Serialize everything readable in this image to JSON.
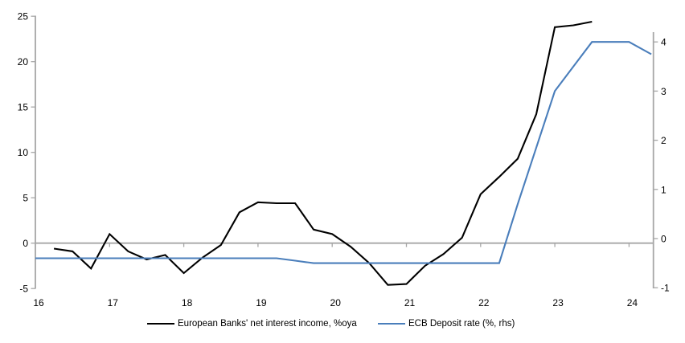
{
  "chart_data": {
    "type": "line",
    "title": "",
    "x_axis": {
      "ticks": [
        16,
        17,
        18,
        19,
        20,
        21,
        22,
        23,
        24
      ],
      "range": [
        16,
        24.33
      ],
      "grid": false
    },
    "left_axis": {
      "ticks": [
        25,
        20,
        15,
        10,
        5,
        0,
        -5
      ],
      "range": [
        -5,
        25
      ]
    },
    "right_axis": {
      "ticks": [
        4,
        3,
        2,
        1,
        0,
        -1
      ],
      "range": [
        -1,
        4
      ]
    },
    "style": {
      "axis_color": "#a6a6a6",
      "background": "#ffffff",
      "zero_line": true,
      "legend_position": "bottom"
    },
    "series": [
      {
        "name": "European Banks' net interest income, %oya",
        "axis": "left",
        "color": "#000000",
        "x": [
          16.25,
          16.5,
          16.75,
          17.0,
          17.25,
          17.5,
          17.75,
          18.0,
          18.25,
          18.5,
          18.75,
          19.0,
          19.25,
          19.5,
          19.75,
          20.0,
          20.25,
          20.5,
          20.75,
          21.0,
          21.25,
          21.5,
          21.75,
          22.0,
          22.25,
          22.5,
          22.75,
          23.0,
          23.25,
          23.5
        ],
        "y": [
          -0.6,
          -0.9,
          -2.8,
          1.0,
          -0.9,
          -1.8,
          -1.3,
          -3.3,
          -1.6,
          -0.2,
          3.4,
          4.5,
          4.4,
          4.4,
          1.5,
          1.0,
          -0.4,
          -2.2,
          -4.6,
          -4.5,
          -2.5,
          -1.2,
          0.6,
          5.4,
          7.3,
          9.3,
          14.2,
          23.8,
          24.0,
          24.4
        ]
      },
      {
        "name": "ECB Deposit rate (%, rhs)",
        "axis": "right",
        "color": "#4a7ebb",
        "x": [
          16.0,
          16.25,
          16.5,
          16.75,
          17.0,
          17.25,
          17.5,
          17.75,
          18.0,
          18.25,
          18.5,
          18.75,
          19.0,
          19.25,
          19.5,
          19.75,
          20.0,
          20.25,
          20.5,
          20.75,
          21.0,
          21.25,
          21.5,
          21.75,
          22.0,
          22.25,
          22.5,
          22.75,
          23.0,
          23.25,
          23.5,
          23.75,
          24.0,
          24.3
        ],
        "y": [
          -0.4,
          -0.4,
          -0.4,
          -0.4,
          -0.4,
          -0.4,
          -0.4,
          -0.4,
          -0.4,
          -0.4,
          -0.4,
          -0.4,
          -0.4,
          -0.4,
          -0.45,
          -0.5,
          -0.5,
          -0.5,
          -0.5,
          -0.5,
          -0.5,
          -0.5,
          -0.5,
          -0.5,
          -0.5,
          -0.5,
          0.7,
          1.85,
          3.0,
          3.5,
          4.0,
          4.0,
          4.0,
          3.75
        ]
      }
    ],
    "legend": [
      "European Banks' net interest income, %oya",
      "ECB Deposit rate (%, rhs)"
    ]
  }
}
